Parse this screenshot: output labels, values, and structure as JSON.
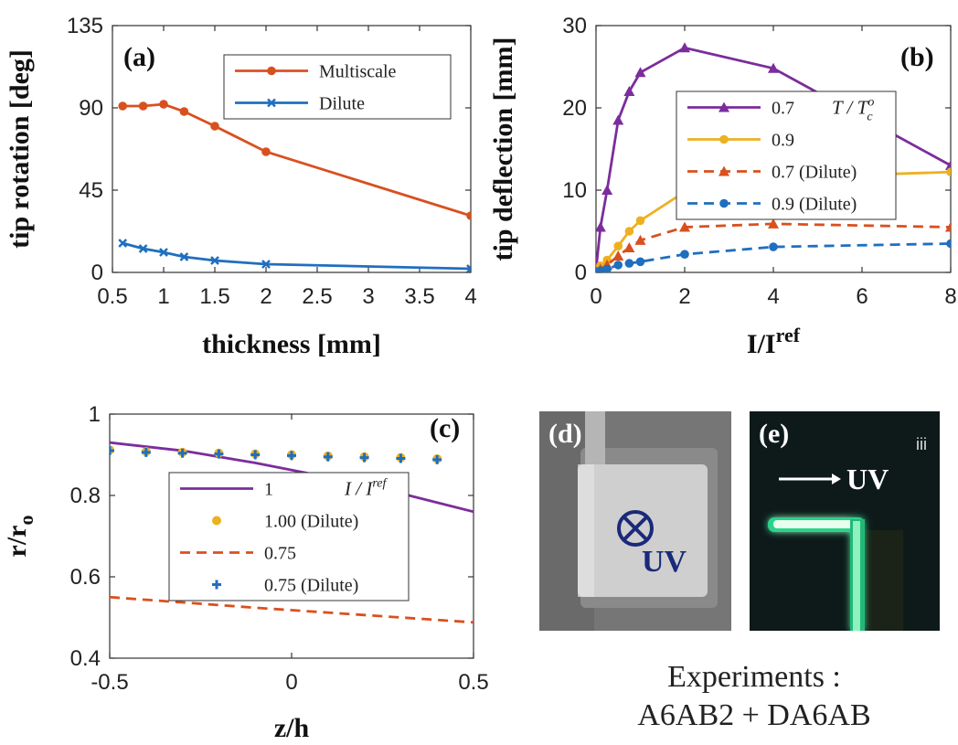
{
  "chart_data": [
    {
      "panel": "(a)",
      "type": "line",
      "xlabel": "thickness [mm]",
      "ylabel": "tip rotation [deg]",
      "xlim": [
        0.5,
        4
      ],
      "ylim": [
        0,
        135
      ],
      "xticks": [
        0.5,
        1,
        1.5,
        2,
        2.5,
        3,
        3.5,
        4
      ],
      "yticks": [
        0,
        45,
        90,
        135
      ],
      "legend_position": "top-right",
      "series": [
        {
          "name": "Multiscale",
          "color": "#d9501f",
          "marker": "circle",
          "dash": "solid",
          "x": [
            0.6,
            0.8,
            1.0,
            1.2,
            1.5,
            2.0,
            4.0
          ],
          "y": [
            91,
            91,
            92,
            88,
            80,
            66,
            31
          ]
        },
        {
          "name": "Dilute",
          "color": "#1f6fbf",
          "marker": "x",
          "dash": "solid",
          "x": [
            0.6,
            0.8,
            1.0,
            1.2,
            1.5,
            2.0,
            4.0
          ],
          "y": [
            16,
            13,
            11,
            8.5,
            6.5,
            4.5,
            2
          ]
        }
      ]
    },
    {
      "panel": "(b)",
      "type": "line",
      "xlabel": "I/I",
      "xlabel_sup": "ref",
      "ylabel": "tip deflection [mm]",
      "xlim": [
        0,
        8
      ],
      "ylim": [
        0,
        30
      ],
      "xticks": [
        0,
        2,
        4,
        6,
        8
      ],
      "yticks": [
        0,
        10,
        20,
        30
      ],
      "legend_position": "right",
      "legend_header": "T / T",
      "legend_header_sup": "o",
      "legend_header_sub": "c",
      "series": [
        {
          "name": "0.7",
          "color": "#7b2d9c",
          "marker": "triangle",
          "dash": "solid",
          "x": [
            0,
            0.1,
            0.25,
            0.5,
            0.75,
            1,
            2,
            4,
            8
          ],
          "y": [
            0.3,
            5.5,
            10,
            18.5,
            22,
            24.3,
            27.3,
            24.8,
            13
          ]
        },
        {
          "name": "0.9",
          "color": "#edb120",
          "marker": "circle",
          "dash": "solid",
          "x": [
            0,
            0.1,
            0.25,
            0.5,
            0.75,
            1,
            2,
            4,
            8
          ],
          "y": [
            0.2,
            0.8,
            1.5,
            3.2,
            5,
            6.3,
            9.8,
            11.5,
            12.2
          ]
        },
        {
          "name": "0.7 (Dilute)",
          "color": "#d9501f",
          "marker": "triangle",
          "dash": "dashed",
          "x": [
            0,
            0.1,
            0.25,
            0.5,
            0.75,
            1,
            2,
            4,
            8
          ],
          "y": [
            0.1,
            0.4,
            0.9,
            2,
            3,
            3.9,
            5.5,
            5.9,
            5.5
          ]
        },
        {
          "name": "0.9 (Dilute)",
          "color": "#1f6fbf",
          "marker": "circle",
          "dash": "dashed",
          "x": [
            0,
            0.1,
            0.25,
            0.5,
            0.75,
            1,
            2,
            4,
            8
          ],
          "y": [
            0.1,
            0.2,
            0.4,
            0.9,
            1.1,
            1.3,
            2.2,
            3.1,
            3.5
          ]
        }
      ]
    },
    {
      "panel": "(c)",
      "type": "line",
      "xlabel": "z/h",
      "ylabel": "r/r",
      "ylabel_sub": "o",
      "xlim": [
        -0.5,
        0.5
      ],
      "ylim": [
        0.4,
        1
      ],
      "xticks": [
        -0.5,
        0,
        0.5
      ],
      "yticks": [
        0.4,
        0.6,
        0.8,
        1
      ],
      "legend_position": "center-left",
      "legend_header": "I / I",
      "legend_header_sup": "ref",
      "series": [
        {
          "name": "1",
          "color": "#7b2d9c",
          "marker": "none",
          "dash": "solid",
          "x": [
            -0.5,
            -0.3,
            -0.1,
            0.1,
            0.3,
            0.5
          ],
          "y": [
            0.93,
            0.91,
            0.88,
            0.845,
            0.805,
            0.76
          ]
        },
        {
          "name": "1.00 (Dilute)",
          "color": "#edb120",
          "marker": "dot",
          "dash": "none",
          "x": [
            -0.5,
            -0.4,
            -0.3,
            -0.2,
            -0.1,
            0,
            0.1,
            0.2,
            0.3,
            0.4
          ],
          "y": [
            0.912,
            0.908,
            0.906,
            0.904,
            0.902,
            0.9,
            0.897,
            0.895,
            0.893,
            0.89
          ]
        },
        {
          "name": "0.75",
          "color": "#d9501f",
          "marker": "none",
          "dash": "dashed",
          "x": [
            -0.5,
            -0.3,
            -0.1,
            0.1,
            0.3,
            0.5
          ],
          "y": [
            0.55,
            0.537,
            0.524,
            0.512,
            0.5,
            0.488
          ]
        },
        {
          "name": "0.75 (Dilute)",
          "color": "#1f6fbf",
          "marker": "plus",
          "dash": "none",
          "x": [
            -0.5,
            -0.4,
            -0.3,
            -0.2,
            -0.1,
            0,
            0.1,
            0.2,
            0.3,
            0.4
          ],
          "y": [
            0.91,
            0.906,
            0.904,
            0.902,
            0.9,
            0.898,
            0.895,
            0.893,
            0.891,
            0.888
          ]
        }
      ]
    }
  ],
  "photos": {
    "d": {
      "label": "(d)",
      "text": "UV"
    },
    "e": {
      "label": "(e)",
      "text": "UV",
      "corner": "iii"
    }
  },
  "caption": {
    "line1": "Experiments :",
    "line2": "A6AB2 + DA6AB"
  }
}
